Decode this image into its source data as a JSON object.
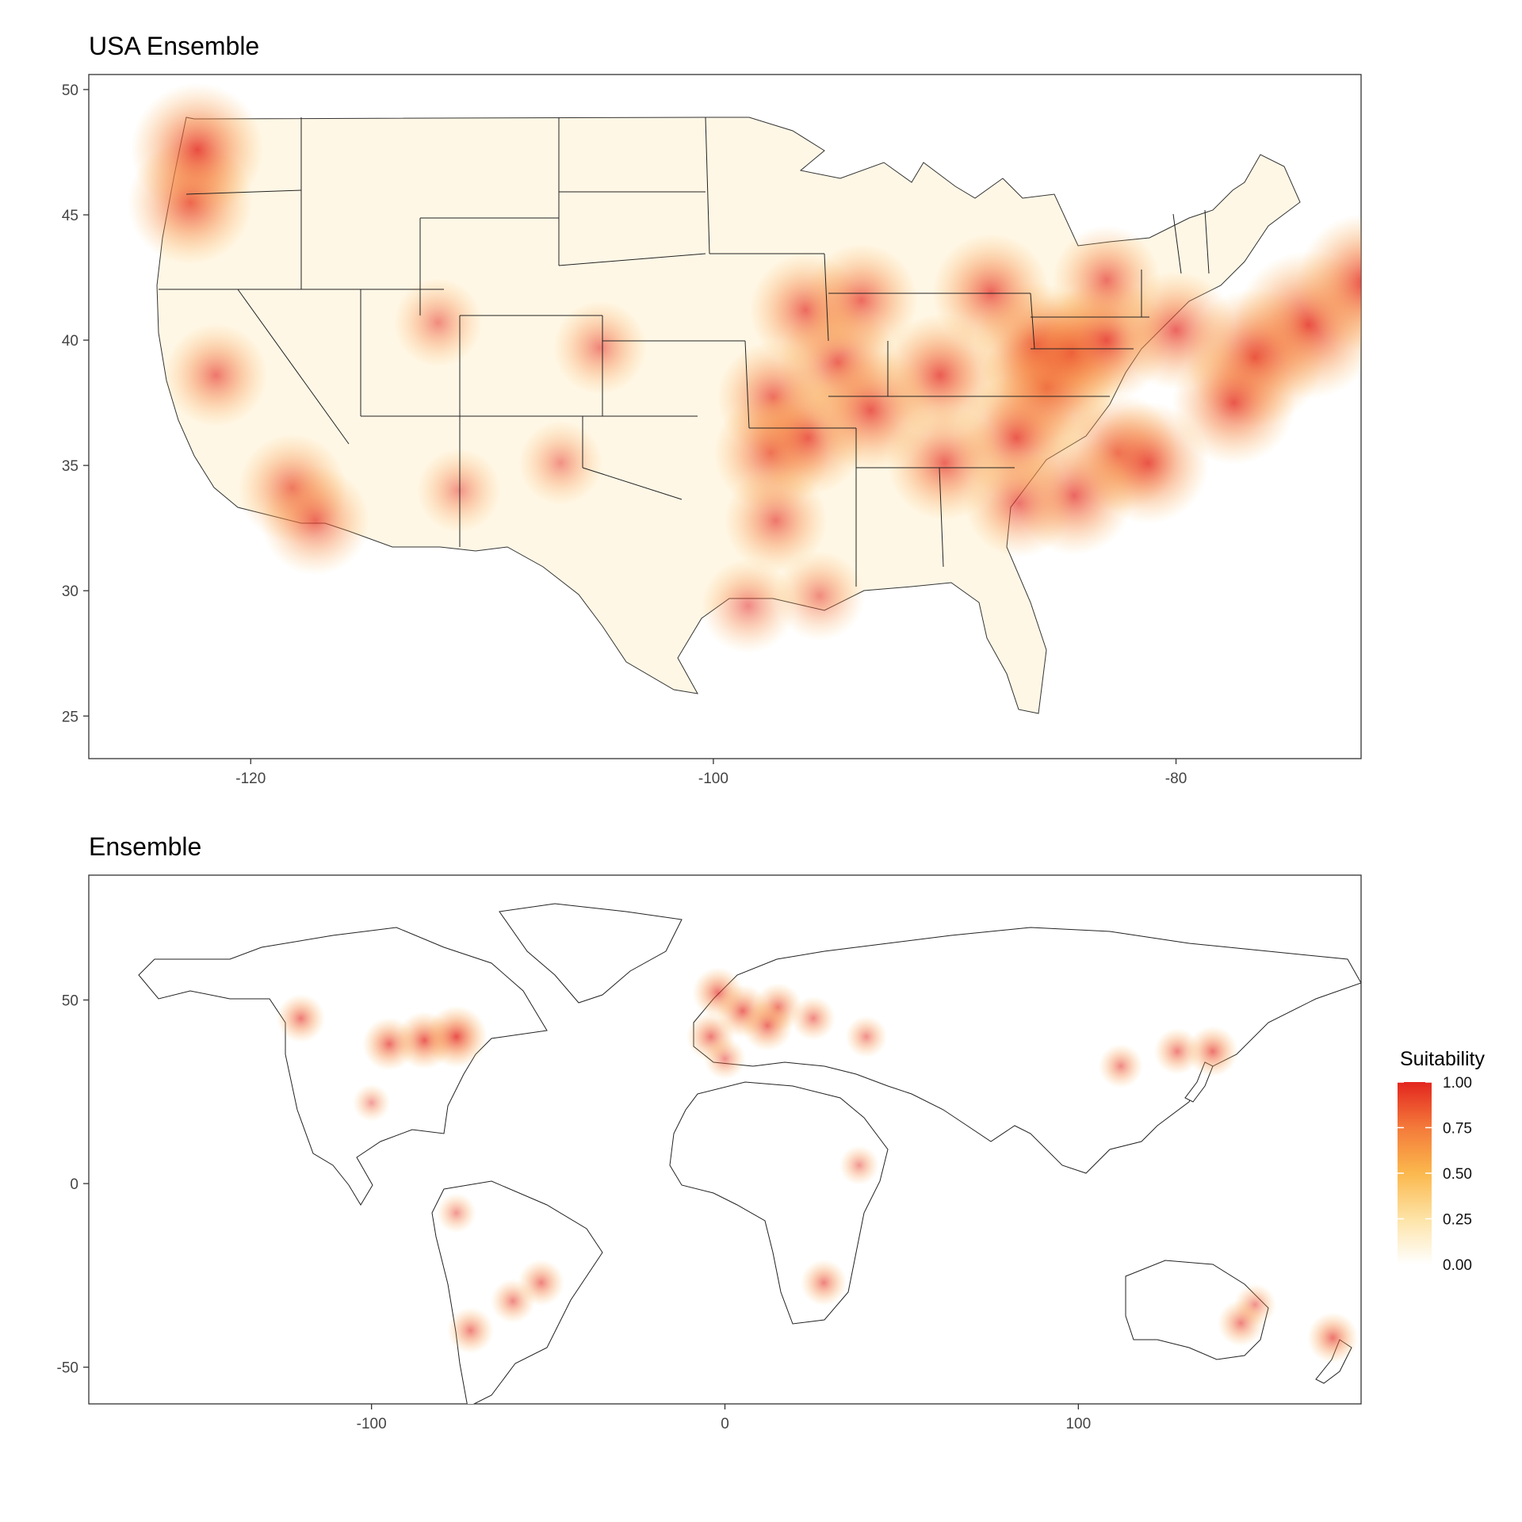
{
  "maps": [
    {
      "title": "USA Ensemble",
      "xlim": [
        -127,
        -72
      ],
      "ylim": [
        23.3,
        50.6
      ],
      "x_ticks": [
        -120,
        -100,
        -80
      ],
      "y_ticks": [
        25,
        30,
        35,
        40,
        45,
        50
      ],
      "x_tick_labels": [
        "-120",
        "-100",
        "-80"
      ],
      "y_tick_labels": [
        "25",
        "30",
        "35",
        "40",
        "45",
        "50"
      ]
    },
    {
      "title": "Ensemble",
      "xlim": [
        -180,
        180
      ],
      "ylim": [
        -60,
        84
      ],
      "x_ticks": [
        -100,
        0,
        100
      ],
      "y_ticks": [
        -50,
        0,
        50
      ],
      "x_tick_labels": [
        "-100",
        "0",
        "100"
      ],
      "y_tick_labels": [
        "-50",
        "0",
        "50"
      ]
    }
  ],
  "legend": {
    "title": "Suitability",
    "breaks": [
      1.0,
      0.75,
      0.5,
      0.25,
      0.0
    ],
    "labels": [
      "1.00",
      "0.75",
      "0.50",
      "0.25",
      "0.00"
    ],
    "colors": [
      "#ffffff",
      "#fde3a6",
      "#fbb84d",
      "#f47a3a",
      "#e3261f"
    ]
  },
  "chart_data": [
    {
      "type": "heatmap",
      "title": "USA Ensemble",
      "xlim": [
        -127,
        -72
      ],
      "ylim": [
        23.3,
        50.6
      ],
      "x_ticks": [
        -120,
        -100,
        -80
      ],
      "y_ticks": [
        25,
        30,
        35,
        40,
        45,
        50
      ],
      "value_name": "Suitability",
      "value_range": [
        0,
        1
      ],
      "hotspots": [
        {
          "lon": -74.3,
          "lat": 40.6,
          "value": 0.95
        },
        {
          "lon": -71.8,
          "lat": 42.3,
          "value": 0.85
        },
        {
          "lon": -76.6,
          "lat": 39.3,
          "value": 0.85
        },
        {
          "lon": -85.6,
          "lat": 38.1,
          "value": 0.82
        },
        {
          "lon": -86.0,
          "lat": 39.8,
          "value": 0.72
        },
        {
          "lon": -84.5,
          "lat": 39.5,
          "value": 0.72
        },
        {
          "lon": -83.0,
          "lat": 40.0,
          "value": 0.7
        },
        {
          "lon": -82.5,
          "lat": 35.5,
          "value": 0.65
        },
        {
          "lon": -81.2,
          "lat": 35.1,
          "value": 0.68
        },
        {
          "lon": -86.9,
          "lat": 36.1,
          "value": 0.7
        },
        {
          "lon": -90.2,
          "lat": 38.6,
          "value": 0.7
        },
        {
          "lon": -94.6,
          "lat": 39.1,
          "value": 0.65
        },
        {
          "lon": -96.0,
          "lat": 41.2,
          "value": 0.6
        },
        {
          "lon": -93.6,
          "lat": 41.6,
          "value": 0.6
        },
        {
          "lon": -97.4,
          "lat": 37.7,
          "value": 0.6
        },
        {
          "lon": -97.5,
          "lat": 35.5,
          "value": 0.62
        },
        {
          "lon": -95.9,
          "lat": 36.1,
          "value": 0.62
        },
        {
          "lon": -93.2,
          "lat": 37.2,
          "value": 0.7
        },
        {
          "lon": -90.0,
          "lat": 35.1,
          "value": 0.62
        },
        {
          "lon": -84.4,
          "lat": 33.8,
          "value": 0.65
        },
        {
          "lon": -86.8,
          "lat": 33.5,
          "value": 0.55
        },
        {
          "lon": -77.5,
          "lat": 37.5,
          "value": 0.7
        },
        {
          "lon": -80.0,
          "lat": 40.4,
          "value": 0.65
        },
        {
          "lon": -88.0,
          "lat": 41.9,
          "value": 0.65
        },
        {
          "lon": -83.0,
          "lat": 42.4,
          "value": 0.55
        },
        {
          "lon": -122.6,
          "lat": 45.5,
          "value": 0.72
        },
        {
          "lon": -122.3,
          "lat": 47.6,
          "value": 0.8
        },
        {
          "lon": -121.5,
          "lat": 38.6,
          "value": 0.5
        },
        {
          "lon": -118.2,
          "lat": 34.1,
          "value": 0.55
        },
        {
          "lon": -117.2,
          "lat": 32.8,
          "value": 0.55
        },
        {
          "lon": -104.9,
          "lat": 39.7,
          "value": 0.4
        },
        {
          "lon": -97.3,
          "lat": 32.8,
          "value": 0.5
        },
        {
          "lon": -98.5,
          "lat": 29.4,
          "value": 0.4
        },
        {
          "lon": -95.4,
          "lat": 29.8,
          "value": 0.35
        },
        {
          "lon": -111.9,
          "lat": 40.7,
          "value": 0.35
        },
        {
          "lon": -106.6,
          "lat": 35.1,
          "value": 0.3
        },
        {
          "lon": -111.0,
          "lat": 34.0,
          "value": 0.3
        }
      ]
    },
    {
      "type": "heatmap",
      "title": "Ensemble",
      "xlim": [
        -180,
        180
      ],
      "ylim": [
        -60,
        84
      ],
      "x_ticks": [
        -100,
        0,
        100
      ],
      "y_ticks": [
        -50,
        0,
        50
      ],
      "value_name": "Suitability",
      "value_range": [
        0,
        1
      ],
      "hotspots": [
        {
          "lon": -85,
          "lat": 39,
          "value": 0.7
        },
        {
          "lon": -76,
          "lat": 40,
          "value": 0.8
        },
        {
          "lon": -95,
          "lat": 38,
          "value": 0.6
        },
        {
          "lon": -120,
          "lat": 45,
          "value": 0.5
        },
        {
          "lon": -100,
          "lat": 22,
          "value": 0.25
        },
        {
          "lon": -60,
          "lat": -32,
          "value": 0.4
        },
        {
          "lon": -52,
          "lat": -27,
          "value": 0.45
        },
        {
          "lon": -72,
          "lat": -40,
          "value": 0.45
        },
        {
          "lon": -76,
          "lat": -8,
          "value": 0.3
        },
        {
          "lon": -2,
          "lat": 52,
          "value": 0.55
        },
        {
          "lon": 5,
          "lat": 47,
          "value": 0.6
        },
        {
          "lon": 15,
          "lat": 48,
          "value": 0.5
        },
        {
          "lon": -4,
          "lat": 40,
          "value": 0.5
        },
        {
          "lon": 12,
          "lat": 43,
          "value": 0.55
        },
        {
          "lon": 25,
          "lat": 45,
          "value": 0.4
        },
        {
          "lon": 40,
          "lat": 40,
          "value": 0.35
        },
        {
          "lon": 0,
          "lat": 34,
          "value": 0.35
        },
        {
          "lon": 112,
          "lat": 32,
          "value": 0.4
        },
        {
          "lon": 138,
          "lat": 36,
          "value": 0.55
        },
        {
          "lon": 128,
          "lat": 36,
          "value": 0.45
        },
        {
          "lon": 28,
          "lat": -27,
          "value": 0.45
        },
        {
          "lon": 38,
          "lat": 5,
          "value": 0.3
        },
        {
          "lon": 150,
          "lat": -33,
          "value": 0.35
        },
        {
          "lon": 146,
          "lat": -38,
          "value": 0.45
        },
        {
          "lon": 172,
          "lat": -42,
          "value": 0.55
        }
      ]
    }
  ]
}
